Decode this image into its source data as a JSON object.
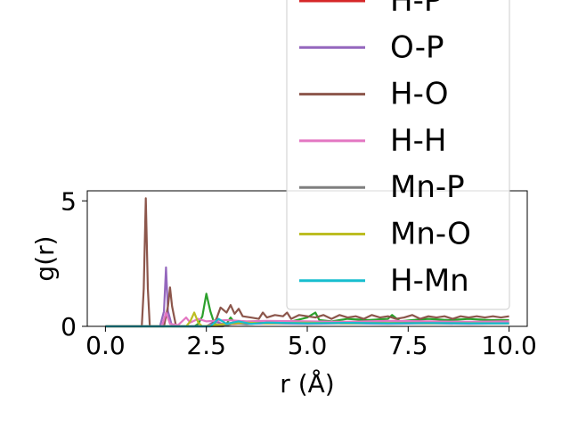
{
  "chart_data": {
    "type": "line",
    "title": "",
    "xlabel": "r (Å)",
    "ylabel": "g(r)",
    "xlim": [
      -0.45,
      10.45
    ],
    "ylim": [
      0,
      5.4
    ],
    "xticks": [
      0.0,
      2.5,
      5.0,
      7.5,
      10.0
    ],
    "xtick_labels": [
      "0.0",
      "2.5",
      "5.0",
      "7.5",
      "10.0"
    ],
    "yticks": [
      0,
      5
    ],
    "ytick_labels": [
      "0",
      "5"
    ],
    "grid": false,
    "legend_position": "top-right",
    "series": [
      {
        "name": "",
        "color": "#2ca02c",
        "x": [
          0.0,
          2.2,
          2.3,
          2.4,
          2.5,
          2.6,
          2.7,
          2.8,
          3.0,
          3.1,
          3.2,
          3.5,
          4.0,
          4.5,
          5.0,
          5.2,
          5.3,
          5.6,
          6.0,
          6.5,
          7.0,
          7.1,
          7.3,
          7.6,
          8.0,
          8.5,
          9.0,
          9.5,
          10.0
        ],
        "y": [
          0.0,
          0.0,
          0.1,
          0.4,
          1.3,
          0.6,
          0.1,
          0.05,
          0.1,
          0.35,
          0.15,
          0.15,
          0.2,
          0.15,
          0.35,
          0.55,
          0.25,
          0.2,
          0.3,
          0.25,
          0.3,
          0.45,
          0.2,
          0.25,
          0.3,
          0.25,
          0.3,
          0.25,
          0.25
        ]
      },
      {
        "name": "H-P",
        "color": "#d62728",
        "x": [
          0.0,
          2.5,
          3.0,
          3.5,
          4.0,
          4.5,
          5.0,
          5.5,
          6.0,
          6.5,
          7.0,
          7.5,
          8.0,
          8.5,
          9.0,
          9.5,
          10.0
        ],
        "y": [
          0.0,
          0.0,
          0.08,
          0.12,
          0.15,
          0.12,
          0.18,
          0.14,
          0.16,
          0.13,
          0.17,
          0.14,
          0.16,
          0.14,
          0.15,
          0.14,
          0.15
        ]
      },
      {
        "name": "O-P",
        "color": "#9467bd",
        "x": [
          0.0,
          1.35,
          1.45,
          1.5,
          1.55,
          1.65,
          2.5,
          2.7,
          2.9,
          3.2,
          3.6,
          4.0,
          5.0,
          6.0,
          7.0,
          8.0,
          9.0,
          10.0
        ],
        "y": [
          0.0,
          0.0,
          0.6,
          2.35,
          0.6,
          0.0,
          0.0,
          0.2,
          0.1,
          0.15,
          0.1,
          0.12,
          0.1,
          0.12,
          0.1,
          0.12,
          0.1,
          0.12
        ]
      },
      {
        "name": "H-O",
        "color": "#8c564b",
        "x": [
          0.0,
          0.9,
          0.95,
          1.0,
          1.05,
          1.1,
          1.45,
          1.55,
          1.6,
          1.65,
          1.75,
          2.6,
          2.75,
          2.85,
          3.0,
          3.1,
          3.2,
          3.3,
          3.4,
          3.6,
          3.8,
          3.9,
          4.0,
          4.2,
          4.4,
          4.5,
          4.6,
          4.8,
          5.0,
          5.2,
          5.4,
          5.6,
          5.8,
          6.0,
          6.2,
          6.4,
          6.6,
          6.8,
          7.0,
          7.2,
          7.4,
          7.6,
          7.8,
          8.0,
          8.2,
          8.4,
          8.6,
          8.8,
          9.0,
          9.2,
          9.4,
          9.6,
          9.8,
          10.0
        ],
        "y": [
          0.0,
          0.0,
          1.5,
          5.1,
          1.5,
          0.0,
          0.0,
          0.8,
          1.55,
          0.8,
          0.0,
          0.0,
          0.3,
          0.75,
          0.55,
          0.85,
          0.5,
          0.7,
          0.4,
          0.35,
          0.3,
          0.55,
          0.35,
          0.45,
          0.4,
          0.55,
          0.3,
          0.45,
          0.4,
          0.35,
          0.45,
          0.3,
          0.45,
          0.35,
          0.4,
          0.3,
          0.45,
          0.35,
          0.4,
          0.3,
          0.35,
          0.45,
          0.3,
          0.4,
          0.35,
          0.4,
          0.3,
          0.4,
          0.35,
          0.4,
          0.35,
          0.4,
          0.35,
          0.4
        ]
      },
      {
        "name": "H-H",
        "color": "#e377c2",
        "x": [
          0.0,
          1.4,
          1.5,
          1.6,
          1.8,
          2.0,
          2.1,
          2.3,
          2.5,
          3.0,
          3.5,
          4.0,
          5.0,
          6.0,
          7.0,
          8.0,
          9.0,
          10.0
        ],
        "y": [
          0.0,
          0.0,
          0.55,
          0.1,
          0.05,
          0.35,
          0.15,
          0.3,
          0.2,
          0.25,
          0.2,
          0.22,
          0.2,
          0.18,
          0.22,
          0.2,
          0.18,
          0.2
        ]
      },
      {
        "name": "Mn-P",
        "color": "#7f7f7f",
        "x": [
          0.0,
          2.9,
          3.2,
          3.5,
          4.0,
          5.0,
          6.0,
          7.0,
          8.0,
          9.0,
          10.0
        ],
        "y": [
          0.0,
          0.0,
          0.12,
          0.08,
          0.15,
          0.12,
          0.14,
          0.12,
          0.13,
          0.12,
          0.12
        ]
      },
      {
        "name": "Mn-O",
        "color": "#bcbd22",
        "x": [
          0.0,
          2.0,
          2.1,
          2.2,
          2.3,
          2.4,
          3.0,
          3.5,
          4.0,
          5.0,
          6.0,
          7.0,
          8.0,
          9.0,
          10.0
        ],
        "y": [
          0.0,
          0.0,
          0.2,
          0.55,
          0.15,
          0.0,
          0.1,
          0.15,
          0.12,
          0.15,
          0.12,
          0.14,
          0.12,
          0.13,
          0.12
        ]
      },
      {
        "name": "H-Mn",
        "color": "#17becf",
        "x": [
          0.0,
          2.6,
          2.8,
          3.0,
          3.3,
          3.6,
          4.0,
          5.0,
          6.0,
          7.0,
          8.0,
          9.0,
          10.0
        ],
        "y": [
          0.0,
          0.0,
          0.3,
          0.1,
          0.2,
          0.1,
          0.15,
          0.12,
          0.14,
          0.12,
          0.13,
          0.12,
          0.12
        ]
      }
    ]
  }
}
